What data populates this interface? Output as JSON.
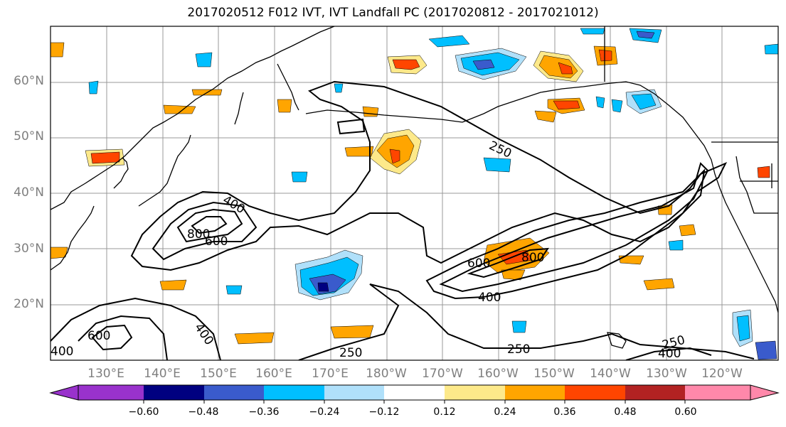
{
  "title": "2017020512 F012 IVT, IVT Landfall PC (2017020812 - 2017021012)",
  "map": {
    "lon_labels": [
      "130°E",
      "140°E",
      "150°E",
      "160°E",
      "170°E",
      "180°W",
      "170°W",
      "160°W",
      "150°W",
      "140°W",
      "130°W",
      "120°W"
    ],
    "lat_labels": [
      "60°N",
      "50°N",
      "40°N",
      "30°N",
      "20°N"
    ],
    "contour_labels": [
      "250",
      "400",
      "800",
      "600",
      "600",
      "400",
      "800",
      "400",
      "600",
      "400",
      "250",
      "250",
      "250",
      "400"
    ]
  },
  "colorbar": {
    "ticks": [
      "−0.60",
      "−0.48",
      "−0.36",
      "−0.24",
      "−0.12",
      "0.12",
      "0.24",
      "0.36",
      "0.48",
      "0.60"
    ],
    "colors": {
      "extend_low": "#9932cc",
      "b1": "#000080",
      "b2": "#3a5bcc",
      "b3": "#00bfff",
      "b4": "#b0e0fa",
      "b5": "#ffffff",
      "b6": "#fde98a",
      "b7": "#ffa500",
      "b8": "#ff4500",
      "b9": "#b22222",
      "extend_high": "#ff88aa"
    }
  }
}
